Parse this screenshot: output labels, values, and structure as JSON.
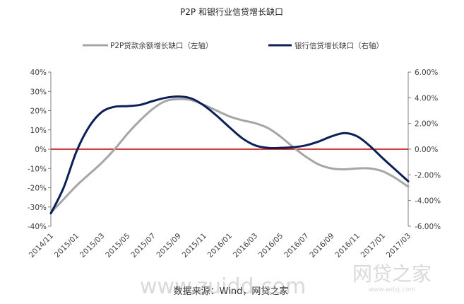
{
  "chart_data": {
    "type": "line",
    "title": "P2P 和银行业信贷增长缺口",
    "categories": [
      "2014/11",
      "2014/12",
      "2015/01",
      "2015/02",
      "2015/03",
      "2015/04",
      "2015/05",
      "2015/06",
      "2015/07",
      "2015/08",
      "2015/09",
      "2015/10",
      "2015/11",
      "2015/12",
      "2016/01",
      "2016/02",
      "2016/03",
      "2016/04",
      "2016/05",
      "2016/06",
      "2016/07",
      "2016/08",
      "2016/09",
      "2016/10",
      "2016/11",
      "2016/12",
      "2017/01",
      "2017/02",
      "2017/03"
    ],
    "x_tick_labels": [
      "2014/11",
      "2015/01",
      "2015/03",
      "2015/05",
      "2015/07",
      "2015/09",
      "2015/11",
      "2016/01",
      "2016/03",
      "2016/05",
      "2016/07",
      "2016/09",
      "2016/11",
      "2017/01",
      "2017/03"
    ],
    "y_left": {
      "ylim": [
        -40,
        40
      ],
      "ticks": [
        "40%",
        "30%",
        "20%",
        "10%",
        "0%",
        "-10%",
        "-20%",
        "-30%",
        "-40%"
      ],
      "tick_values": [
        40,
        30,
        20,
        10,
        0,
        -10,
        -20,
        -30,
        -40
      ]
    },
    "y_right": {
      "ylim": [
        -6,
        6
      ],
      "ticks": [
        "6.00%",
        "4.00%",
        "2.00%",
        "0.00%",
        "-2.00%",
        "-4.00%",
        "-6.00%"
      ],
      "tick_values": [
        6,
        4,
        2,
        0,
        -2,
        -4,
        -6
      ]
    },
    "zero_line": {
      "value": 0,
      "color": "#c00000"
    },
    "series": [
      {
        "name": "P2P贷款余额增长缺口（左轴）",
        "axis": "left",
        "color": "#a6a6a6",
        "values": [
          -33,
          -26,
          -19,
          -13,
          -7,
          0,
          8,
          15,
          21,
          25,
          26,
          25.5,
          23,
          20,
          17,
          15,
          13.5,
          11,
          6.5,
          1,
          -4,
          -8,
          -10,
          -10.5,
          -10,
          -10,
          -11.5,
          -15,
          -19.5
        ]
      },
      {
        "name": "银行信贷增长缺口（右轴）",
        "axis": "right",
        "color": "#0c1f57",
        "values": [
          -5.0,
          -3.0,
          -0.2,
          1.75,
          2.9,
          3.3,
          3.35,
          3.45,
          3.75,
          4.0,
          4.1,
          3.95,
          3.4,
          2.6,
          1.7,
          0.85,
          0.3,
          0.1,
          0.1,
          0.15,
          0.3,
          0.6,
          1.0,
          1.25,
          1.0,
          0.25,
          -0.7,
          -1.6,
          -2.5
        ]
      }
    ],
    "legend": {
      "position": "top"
    },
    "grid": false
  },
  "source_text": "数据来源：Wind，网贷之家",
  "watermarks": {
    "left": "www.zuidd.com",
    "right": "网贷之家",
    "right_sub": "www.wdzj.com"
  }
}
